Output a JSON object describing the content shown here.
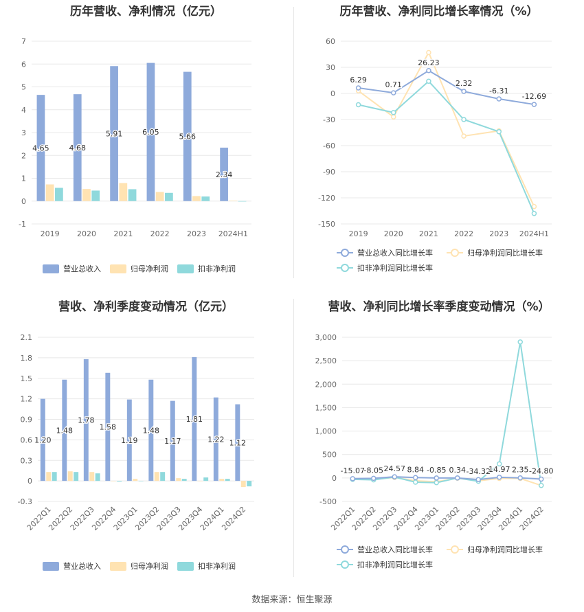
{
  "source": "数据来源：恒生聚源",
  "colors": {
    "revenue": "#8eaadb",
    "parent_profit": "#ffe3b2",
    "deducted_profit": "#8fd9dc",
    "revenue_line": "#8eaadb",
    "parent_line": "#ffe3b2",
    "deducted_line": "#8fd9dc"
  },
  "chart_data": [
    {
      "id": "annual-bars",
      "type": "bar",
      "title": "历年营收、净利情况（亿元）",
      "categories": [
        "2019",
        "2020",
        "2021",
        "2022",
        "2023",
        "2024H1"
      ],
      "series": [
        {
          "name": "营业总收入",
          "values": [
            4.65,
            4.68,
            5.91,
            6.05,
            5.66,
            2.34
          ]
        },
        {
          "name": "归母净利润",
          "values": [
            0.73,
            0.53,
            0.79,
            0.4,
            0.22,
            0.02
          ]
        },
        {
          "name": "扣非净利润",
          "values": [
            0.58,
            0.46,
            0.52,
            0.36,
            0.2,
            -0.02
          ]
        }
      ],
      "data_labels": [
        "4.65",
        "4.68",
        "5.91",
        "6.05",
        "5.66",
        "2.34"
      ],
      "ylim": [
        -1,
        7
      ],
      "yticks": [
        "-1",
        "0",
        "1",
        "2",
        "3",
        "4",
        "5",
        "6",
        "7"
      ],
      "legend": "bottom",
      "grid": true
    },
    {
      "id": "annual-lines",
      "type": "line",
      "title": "历年营收、净利同比增长率情况（%）",
      "categories": [
        "2019",
        "2020",
        "2021",
        "2022",
        "2023",
        "2024H1"
      ],
      "series": [
        {
          "name": "营业总收入同比增长率",
          "values": [
            6.29,
            0.71,
            26.23,
            2.32,
            -6.31,
            -12.69
          ]
        },
        {
          "name": "归母净利润同比增长率",
          "values": [
            3,
            -27,
            47,
            -49,
            -43,
            -130
          ]
        },
        {
          "name": "扣非净利润同比增长率",
          "values": [
            -13,
            -22,
            14,
            -30,
            -44,
            -138
          ]
        }
      ],
      "data_labels": [
        "6.29",
        "0.71",
        "26.23",
        "2.32",
        "-6.31",
        "-12.69"
      ],
      "ylim": [
        -150,
        60
      ],
      "yticks": [
        "-150",
        "-120",
        "-90",
        "-60",
        "-30",
        "0",
        "30",
        "60"
      ],
      "legend": "bottom",
      "grid": true
    },
    {
      "id": "quarter-bars",
      "type": "bar",
      "title": "营收、净利季度变动情况（亿元）",
      "categories": [
        "2022Q1",
        "2022Q2",
        "2022Q3",
        "2022Q4",
        "2023Q1",
        "2023Q2",
        "2023Q3",
        "2023Q4",
        "2024Q1",
        "2024Q2"
      ],
      "series": [
        {
          "name": "营业总收入",
          "values": [
            1.2,
            1.48,
            1.78,
            1.58,
            1.19,
            1.48,
            1.17,
            1.81,
            1.22,
            1.12
          ]
        },
        {
          "name": "归母净利润",
          "values": [
            0.13,
            0.14,
            0.13,
            0.0,
            0.03,
            0.13,
            0.04,
            0.0,
            0.03,
            -0.09
          ]
        },
        {
          "name": "扣非净利润",
          "values": [
            0.13,
            0.13,
            0.11,
            -0.01,
            0.0,
            0.13,
            0.03,
            0.05,
            0.03,
            -0.08
          ]
        }
      ],
      "data_labels": [
        "1.20",
        "1.48",
        "1.78",
        "1.58",
        "1.19",
        "1.48",
        "1.17",
        "1.81",
        "1.22",
        "1.12"
      ],
      "ylim": [
        -0.3,
        2.1
      ],
      "yticks": [
        "-0.3",
        "0",
        "0.3",
        "0.6",
        "0.9",
        "1.2",
        "1.5",
        "1.8",
        "2.1"
      ],
      "legend": "bottom",
      "grid": true
    },
    {
      "id": "quarter-lines",
      "type": "line",
      "title": "营收、净利同比增长率季度变动情况（%）",
      "categories": [
        "2022Q1",
        "2022Q2",
        "2022Q3",
        "2022Q4",
        "2023Q1",
        "2023Q2",
        "2023Q3",
        "2023Q4",
        "2024Q1",
        "2024Q2"
      ],
      "series": [
        {
          "name": "营业总收入同比增长率",
          "values": [
            -15.07,
            -8.05,
            24.57,
            8.84,
            -0.85,
            0.34,
            -34.32,
            14.97,
            2.35,
            -24.8
          ]
        },
        {
          "name": "归母净利润同比增长率",
          "values": [
            -20,
            -30,
            10,
            -60,
            -80,
            -5,
            -60,
            -10,
            -10,
            -160
          ]
        },
        {
          "name": "扣非净利润同比增长率",
          "values": [
            -30,
            -40,
            20,
            -90,
            -100,
            0,
            -70,
            300,
            2900,
            -160
          ]
        }
      ],
      "data_labels": [
        "-15.07",
        "-8.05",
        "24.57",
        "8.84",
        "-0.85",
        "0.34",
        "-34.32",
        "14.97",
        "2.35",
        "-24.80"
      ],
      "ylim": [
        -500,
        3000
      ],
      "yticks": [
        "-500",
        "0",
        "500",
        "1,000",
        "1,500",
        "2,000",
        "2,500",
        "3,000"
      ],
      "legend": "bottom",
      "grid": true
    }
  ]
}
